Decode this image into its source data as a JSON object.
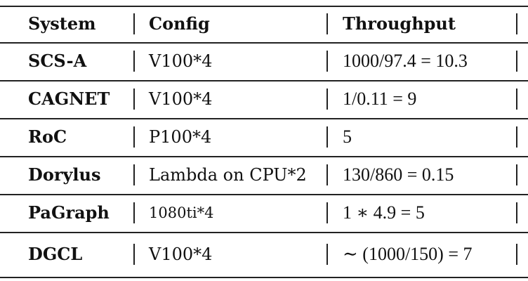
{
  "table": {
    "header": [
      "System",
      "Config",
      "Throughput"
    ],
    "rows": [
      [
        "SCS-A",
        "V100*4",
        "1000/97.4 = 10.3"
      ],
      [
        "CAGNET",
        "V100*4",
        "1/0.11 = 9"
      ],
      [
        "RoC",
        "P100*4",
        "5"
      ],
      [
        "Dorylus",
        "Lambda on CPU*2",
        "130/860 = 0.15"
      ],
      [
        "PaGraph",
        "1080ti*4",
        "1 ∗ 4.9 = 5"
      ],
      [
        "DGCL",
        "V100*4",
        "∼ (1000/150) = 7"
      ]
    ]
  }
}
